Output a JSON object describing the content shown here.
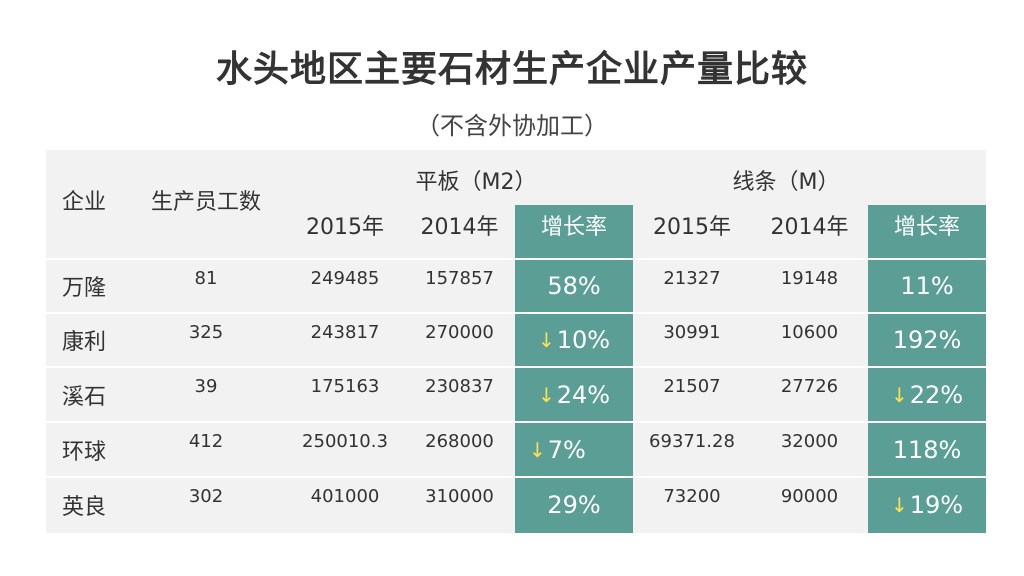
{
  "title": "水头地区主要石材生产企业产量比较",
  "subtitle": "（不含外协加工）",
  "headers": {
    "company": "企业",
    "workers": "生产员工数",
    "slab_group": "平板（M2）",
    "strip_group": "线条（M）",
    "year_2015": "2015年",
    "year_2014": "2014年",
    "growth": "增长率"
  },
  "rows": [
    {
      "company": "万隆",
      "workers": "81",
      "slab_2015": "249485",
      "slab_2014": "157857",
      "slab_growth": "58%",
      "slab_down": false,
      "strip_2015": "21327",
      "strip_2014": "19148",
      "strip_growth": "11%",
      "strip_down": false
    },
    {
      "company": "康利",
      "workers": "325",
      "slab_2015": "243817",
      "slab_2014": "270000",
      "slab_growth": "10%",
      "slab_down": true,
      "strip_2015": "30991",
      "strip_2014": "10600",
      "strip_growth": "192%",
      "strip_down": false
    },
    {
      "company": "溪石",
      "workers": "39",
      "slab_2015": "175163",
      "slab_2014": "230837",
      "slab_growth": "24%",
      "slab_down": true,
      "strip_2015": "21507",
      "strip_2014": "27726",
      "strip_growth": "22%",
      "strip_down": true
    },
    {
      "company": "环球",
      "workers": "412",
      "slab_2015": "250010.3",
      "slab_2014": "268000",
      "slab_growth": "7%",
      "slab_down": true,
      "strip_2015": "69371.28",
      "strip_2014": "32000",
      "strip_growth": "118%",
      "strip_down": false
    },
    {
      "company": "英良",
      "workers": "302",
      "slab_2015": "401000",
      "slab_2014": "310000",
      "slab_growth": "29%",
      "slab_down": false,
      "strip_2015": "73200",
      "strip_2014": "90000",
      "strip_growth": "19%",
      "strip_down": true
    }
  ],
  "down_arrow_icon": "↓",
  "colors": {
    "teal": "#5b9e96",
    "table_bg": "#f2f2f2",
    "arrow": "#ffe14d"
  }
}
